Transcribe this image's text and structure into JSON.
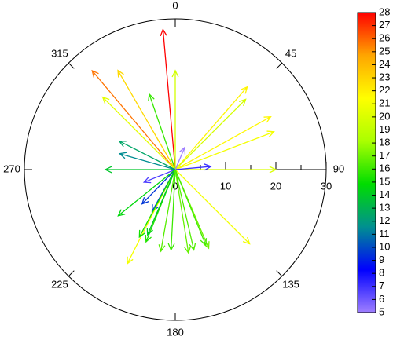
{
  "chart_data": {
    "type": "polar_vector",
    "theta": [
      355,
      320,
      330,
      315,
      341,
      0,
      41,
      45,
      61,
      69,
      90,
      85,
      23,
      135,
      270,
      297,
      286,
      248,
      224,
      231,
      209,
      207,
      208,
      202,
      203,
      190,
      183,
      171,
      167,
      157,
      158
    ],
    "r": [
      28,
      25.7,
      22.8,
      20.4,
      15.9,
      19.7,
      21.8,
      19.8,
      21.7,
      21,
      20,
      7.1,
      4.8,
      20.9,
      13.9,
      12.5,
      11.5,
      6.7,
      9.5,
      14.6,
      9.5,
      21,
      15.2,
      15.5,
      14.1,
      16.5,
      16,
      16.8,
      16.4,
      17,
      16.2
    ],
    "rlim": [
      0,
      30
    ],
    "rticks": [
      0,
      10,
      20,
      30
    ],
    "rminorticks": [
      5,
      15,
      25
    ],
    "thetaticks": [
      0,
      45,
      90,
      135,
      180,
      225,
      270,
      315
    ],
    "zlim": [
      5,
      28
    ],
    "zticks": [
      5,
      6,
      7,
      8,
      9,
      10,
      11,
      12,
      13,
      14,
      15,
      16,
      17,
      18,
      19,
      20,
      21,
      22,
      23,
      24,
      25,
      26,
      27,
      28
    ],
    "colormap": [
      "#9f7fff",
      "#0000ff",
      "#009090",
      "#00dd00",
      "#aaff00",
      "#ffff00",
      "#ffa500",
      "#ff0000"
    ]
  }
}
